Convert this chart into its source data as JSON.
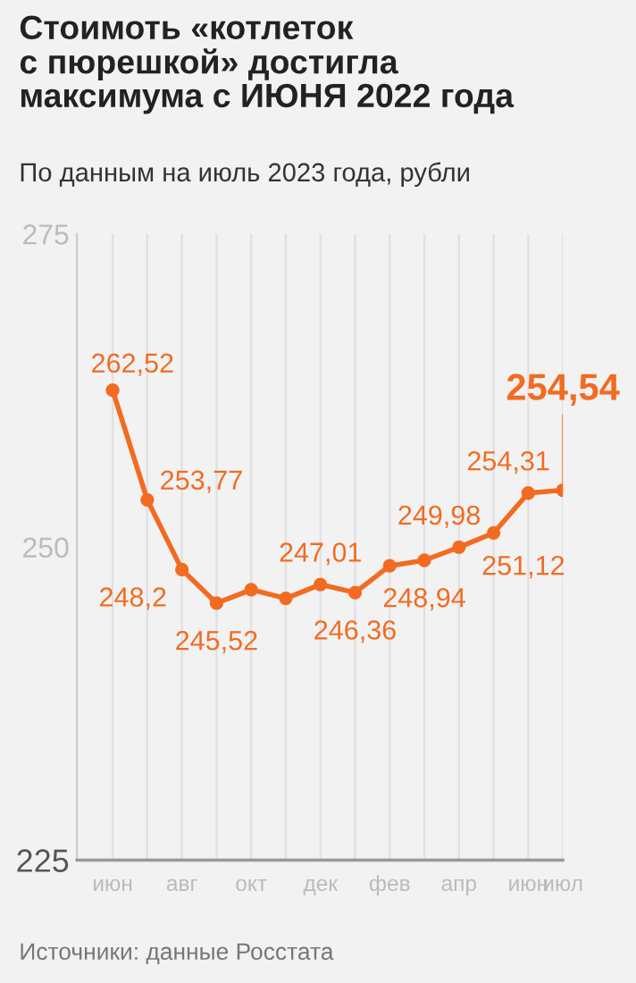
{
  "chart_data": {
    "type": "line",
    "title": "Стоимоть «котлеток\nс пюрешкой» достигла\nмаксимума с ИЮНЯ 2022 года",
    "subtitle": "По данным на июль 2023 года, рубли",
    "categories": [
      "июн",
      null,
      "авг",
      null,
      "окт",
      null,
      "дек",
      null,
      "фев",
      null,
      "апр",
      null,
      "июн",
      "июл"
    ],
    "series": [
      {
        "color": "#f26b21",
        "values": [
          262.52,
          253.77,
          248.2,
          245.52,
          246.6,
          245.9,
          247.01,
          246.36,
          248.5,
          248.94,
          249.98,
          251.12,
          254.31,
          254.54
        ],
        "value_labels": [
          "262,52",
          "253,77",
          "248,2",
          "245,52",
          null,
          null,
          "247,01",
          "246,36",
          null,
          "248,94",
          "249,98",
          "251,12",
          "254,31",
          "254,54"
        ]
      }
    ],
    "ylim": [
      225,
      275
    ],
    "yticks": [
      225,
      250,
      275
    ],
    "grid": "x",
    "marker": "circle",
    "line_style": "solid",
    "annotations": [
      "Источники: данные Росстата"
    ]
  }
}
